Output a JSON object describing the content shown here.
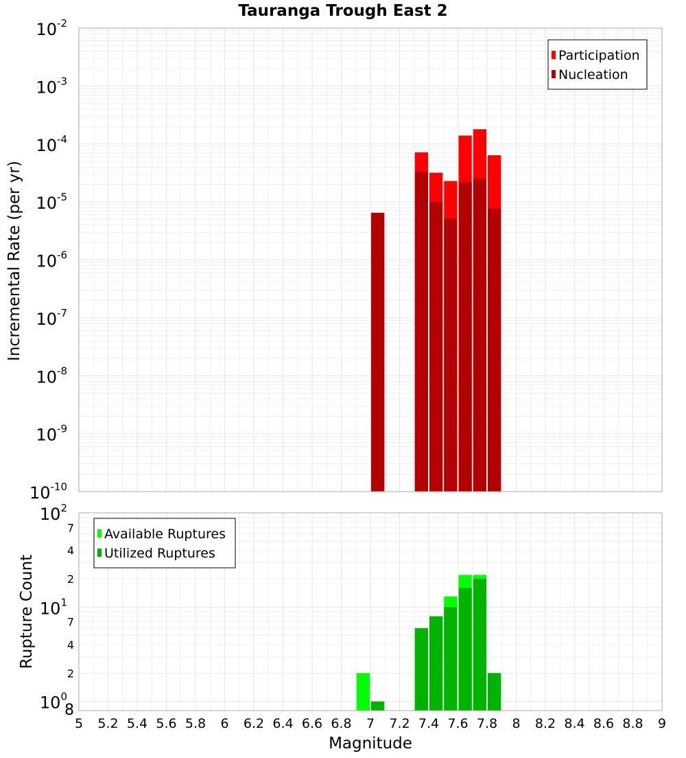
{
  "chart_data": [
    {
      "type": "bar",
      "title": "Tauranga Trough East 2",
      "xlabel": "",
      "ylabel": "Incremental Rate (per yr)",
      "yscale": "log",
      "xlim": [
        5,
        9
      ],
      "ylim": [
        1e-10,
        0.01
      ],
      "grid": true,
      "legend_position": "top-right",
      "y_tick_labels": [
        {
          "base": "10",
          "exp": "-10"
        },
        {
          "base": "10",
          "exp": "-9"
        },
        {
          "base": "10",
          "exp": "-8"
        },
        {
          "base": "10",
          "exp": "-7"
        },
        {
          "base": "10",
          "exp": "-6"
        },
        {
          "base": "10",
          "exp": "-5"
        },
        {
          "base": "10",
          "exp": "-4"
        },
        {
          "base": "10",
          "exp": "-3"
        },
        {
          "base": "10",
          "exp": "-2"
        }
      ],
      "bin_width": 0.1,
      "series": [
        {
          "name": "Participation",
          "color": "#ff0000",
          "x": [
            7.05,
            7.35,
            7.45,
            7.55,
            7.65,
            7.75,
            7.85
          ],
          "values": [
            6.5e-06,
            7.2e-05,
            3.2e-05,
            2.3e-05,
            0.00014,
            0.00018,
            6.4e-05
          ]
        },
        {
          "name": "Nucleation",
          "color": "#b30000",
          "x": [
            7.05,
            7.35,
            7.45,
            7.55,
            7.65,
            7.75,
            7.85
          ],
          "values": [
            6.5e-06,
            3.3e-05,
            1e-05,
            5.2e-06,
            2.2e-05,
            2.5e-05,
            7.7e-06
          ]
        }
      ]
    },
    {
      "type": "bar",
      "xlabel": "Magnitude",
      "ylabel": "Rupture Count",
      "yscale": "log",
      "xlim": [
        5,
        9
      ],
      "ylim": [
        0.8,
        100
      ],
      "grid": true,
      "legend_position": "top-left",
      "x_ticks": [
        5,
        5.2,
        5.4,
        5.6,
        5.8,
        6,
        6.2,
        6.4,
        6.6,
        6.8,
        7,
        7.2,
        7.4,
        7.6,
        7.8,
        8,
        8.2,
        8.4,
        8.6,
        8.8,
        9
      ],
      "x_tick_labels": [
        "5",
        "5.2",
        "5.4",
        "5.6",
        "5.8",
        "6",
        "6.2",
        "6.4",
        "6.6",
        "6.8",
        "7",
        "7.2",
        "7.4",
        "7.6",
        "7.8",
        "8",
        "8.2",
        "8.4",
        "8.6",
        "8.8",
        "9"
      ],
      "y_major_labels": [
        {
          "base": "10",
          "exp": "0"
        },
        {
          "base": "10",
          "exp": "1"
        },
        {
          "base": "10",
          "exp": "2"
        }
      ],
      "y_minor_labels": [
        {
          "value": 0.8,
          "label": "8"
        },
        {
          "value": 2,
          "label": "2"
        },
        {
          "value": 4,
          "label": "4"
        },
        {
          "value": 7,
          "label": "7"
        },
        {
          "value": 20,
          "label": "2"
        },
        {
          "value": 40,
          "label": "4"
        },
        {
          "value": 70,
          "label": "7"
        }
      ],
      "bin_width": 0.1,
      "series": [
        {
          "name": "Available Ruptures",
          "color": "#00ff00",
          "x": [
            6.95,
            7.05,
            7.35,
            7.45,
            7.55,
            7.65,
            7.75,
            7.85
          ],
          "values": [
            2,
            1,
            6,
            8,
            13,
            22,
            22,
            2
          ]
        },
        {
          "name": "Utilized Ruptures",
          "color": "#00b300",
          "x": [
            6.95,
            7.05,
            7.35,
            7.45,
            7.55,
            7.65,
            7.75,
            7.85
          ],
          "values": [
            0,
            1,
            6,
            8,
            10,
            16,
            20,
            2
          ]
        }
      ]
    }
  ]
}
